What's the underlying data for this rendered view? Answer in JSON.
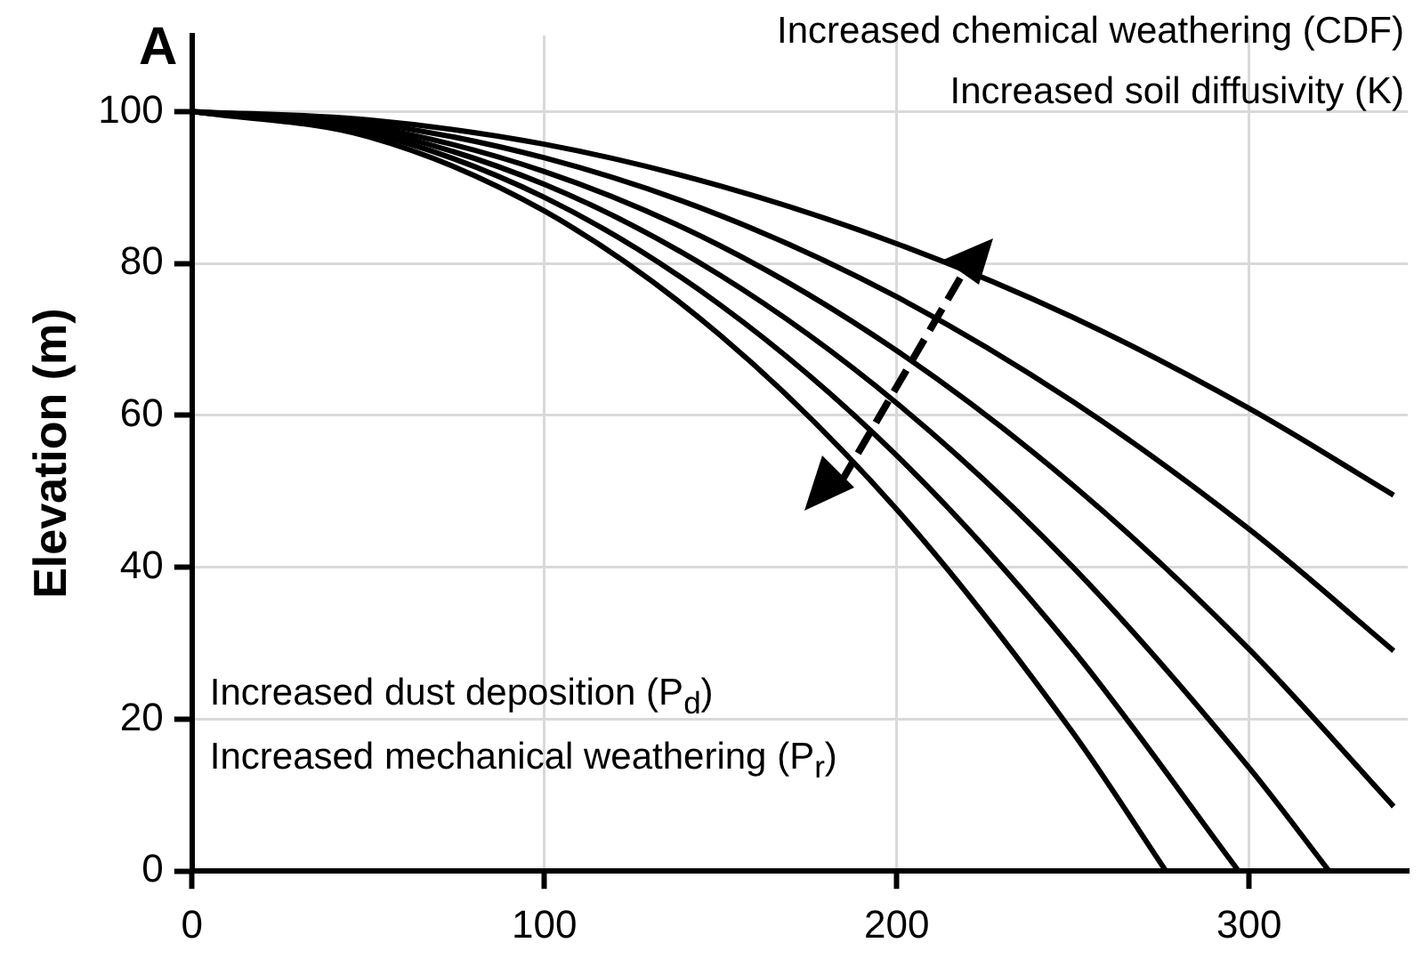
{
  "chart_data": {
    "type": "line",
    "title": "A",
    "ylabel": "Elevation (m)",
    "annotations": [
      "Increased chemical weathering (CDF)",
      "Increased soil diffusivity (K)",
      "Increased dust deposition (P$_{d}$)",
      "Increased mechanical weathering (P$_{r}$)"
    ],
    "xlim": [
      0,
      345
    ],
    "xticks": [
      0,
      100,
      200,
      300
    ],
    "ylim": [
      0,
      110
    ],
    "yticks": [
      0,
      20,
      40,
      60,
      80,
      100
    ],
    "grid": true,
    "legend": false,
    "marker": "none",
    "line_style": "solid",
    "series": [
      {
        "color": "#000000",
        "x": [
          0,
          50,
          100,
          150,
          200,
          250,
          300,
          341
        ],
        "values": [
          100,
          98.9,
          95.7,
          90.2,
          82.6,
          72.9,
          60.9,
          49.5
        ]
      },
      {
        "color": "#000000",
        "x": [
          0,
          50,
          100,
          150,
          200,
          250,
          300,
          341
        ],
        "values": [
          100,
          98.5,
          93.9,
          86.3,
          75.6,
          61.8,
          45.0,
          29
        ]
      },
      {
        "color": "#000000",
        "x": [
          0,
          50,
          100,
          150,
          200,
          250,
          300,
          341
        ],
        "values": [
          100,
          98.0,
          92.1,
          82.3,
          68.5,
          50.8,
          29.2,
          8.5
        ]
      },
      {
        "color": "#000000",
        "x": [
          0,
          50,
          100,
          150,
          200,
          250,
          300,
          322.7
        ],
        "values": [
          100,
          97.6,
          90.4,
          78.4,
          61.6,
          40.0,
          13.6,
          0
        ]
      },
      {
        "color": "#000000",
        "x": [
          0,
          50,
          100,
          150,
          200,
          250,
          297
        ],
        "values": [
          100,
          97.2,
          88.7,
          74.5,
          54.7,
          29.1,
          0
        ]
      },
      {
        "color": "#000000",
        "x": [
          0,
          50,
          100,
          150,
          200,
          250,
          276.4
        ],
        "values": [
          100,
          96.7,
          86.9,
          70.5,
          47.6,
          18.2,
          0
        ]
      }
    ]
  }
}
